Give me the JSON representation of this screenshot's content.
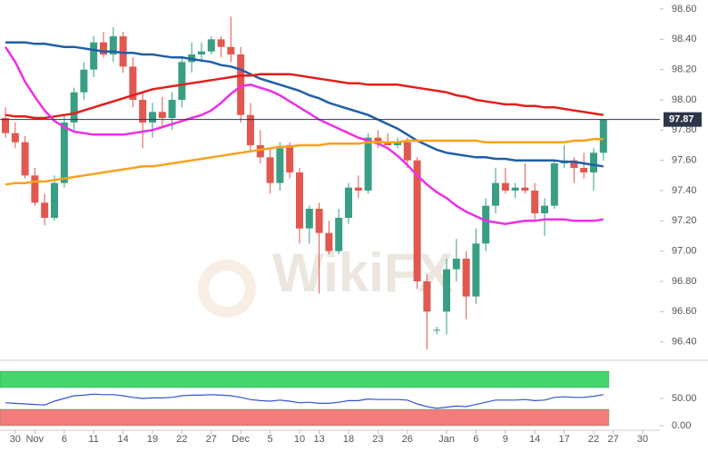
{
  "chart_data": [
    {
      "type": "candlestick",
      "categories": [
        null,
        "30",
        null,
        "Nov",
        null,
        null,
        "6",
        null,
        null,
        "11",
        null,
        null,
        "14",
        null,
        null,
        "19",
        null,
        null,
        "22",
        null,
        null,
        "27",
        null,
        null,
        "Dec",
        null,
        null,
        "5",
        null,
        null,
        "10",
        null,
        "13",
        null,
        null,
        "18",
        null,
        null,
        "23",
        null,
        null,
        "26",
        null,
        null,
        null,
        "Jan",
        null,
        null,
        "6",
        null,
        null,
        "9",
        null,
        null,
        "14",
        null,
        null,
        "17",
        null,
        null,
        "22",
        null,
        "27",
        null,
        null,
        "30"
      ],
      "open": [
        97.88,
        97.78,
        97.72,
        97.5,
        97.32,
        97.22,
        97.45,
        97.85,
        98.05,
        98.2,
        98.38,
        98.3,
        98.42,
        98.22,
        98.0,
        97.85,
        97.92,
        97.88,
        98.0,
        98.25,
        98.3,
        98.32,
        98.4,
        98.35,
        98.3,
        97.9,
        97.7,
        97.62,
        97.45,
        97.7,
        97.52,
        97.15,
        97.28,
        97.12,
        97.0,
        97.22,
        97.42,
        97.4,
        97.75,
        97.72,
        97.7,
        97.72,
        97.6,
        96.8,
        96.48,
        96.6,
        96.88,
        96.95,
        96.7,
        97.05,
        97.3,
        97.45,
        97.4,
        97.42,
        97.4,
        97.25,
        97.3,
        97.58,
        97.6,
        97.55,
        97.52,
        97.65,
        null,
        null,
        null,
        null
      ],
      "high": [
        97.95,
        97.85,
        97.76,
        97.55,
        97.38,
        97.5,
        97.9,
        98.08,
        98.25,
        98.42,
        98.45,
        98.48,
        98.45,
        98.28,
        98.05,
        97.98,
        98.02,
        98.05,
        98.28,
        98.38,
        98.38,
        98.42,
        98.42,
        98.55,
        98.35,
        97.98,
        97.8,
        97.68,
        97.72,
        97.72,
        97.55,
        97.3,
        97.32,
        97.2,
        97.28,
        97.45,
        97.5,
        97.78,
        97.8,
        97.78,
        97.75,
        97.75,
        97.62,
        96.85,
        96.5,
        96.95,
        97.08,
        97.0,
        97.15,
        97.35,
        97.55,
        97.55,
        97.45,
        97.58,
        97.45,
        97.35,
        97.6,
        97.7,
        97.62,
        97.65,
        97.68,
        97.87,
        null,
        null,
        null,
        null
      ],
      "low": [
        97.75,
        97.68,
        97.48,
        97.3,
        97.17,
        97.2,
        97.42,
        97.8,
        98.0,
        98.15,
        98.28,
        98.25,
        98.18,
        97.95,
        97.68,
        97.75,
        97.82,
        97.8,
        97.95,
        98.18,
        98.25,
        98.3,
        98.28,
        98.25,
        97.85,
        97.65,
        97.58,
        97.38,
        97.4,
        97.48,
        97.05,
        97.05,
        96.72,
        96.98,
        96.98,
        97.18,
        97.35,
        97.38,
        97.68,
        97.7,
        97.68,
        97.55,
        96.75,
        96.35,
        96.45,
        96.45,
        96.8,
        96.55,
        96.65,
        97.0,
        97.25,
        97.38,
        97.35,
        97.38,
        97.2,
        97.1,
        97.28,
        97.55,
        97.45,
        97.48,
        97.4,
        97.6,
        null,
        null,
        null,
        null
      ],
      "close": [
        97.78,
        97.72,
        97.5,
        97.32,
        97.22,
        97.45,
        97.85,
        98.05,
        98.2,
        98.38,
        98.3,
        98.42,
        98.22,
        98.0,
        97.85,
        97.92,
        97.88,
        98.0,
        98.25,
        98.3,
        98.32,
        98.4,
        98.35,
        98.3,
        97.9,
        97.7,
        97.62,
        97.45,
        97.68,
        97.52,
        97.15,
        97.28,
        97.12,
        97.0,
        97.22,
        97.42,
        97.4,
        97.75,
        97.72,
        97.7,
        97.72,
        97.6,
        96.8,
        96.6,
        96.48,
        96.88,
        96.95,
        96.7,
        97.05,
        97.3,
        97.45,
        97.4,
        97.42,
        97.4,
        97.25,
        97.3,
        97.58,
        97.6,
        97.55,
        97.52,
        97.65,
        97.87,
        null,
        null,
        null,
        null
      ],
      "up_color": "#3a9e84",
      "down_color": "#e0584f",
      "series": [
        {
          "color": "#1f5fa8",
          "values": [
            98.38,
            98.38,
            98.38,
            98.37,
            98.37,
            98.36,
            98.35,
            98.35,
            98.34,
            98.33,
            98.32,
            98.32,
            98.31,
            98.31,
            98.3,
            98.3,
            98.29,
            98.28,
            98.28,
            98.27,
            98.26,
            98.25,
            98.23,
            98.22,
            98.2,
            98.17,
            98.14,
            98.12,
            98.1,
            98.08,
            98.06,
            98.03,
            98.01,
            97.98,
            97.96,
            97.94,
            97.92,
            97.9,
            97.87,
            97.84,
            97.81,
            97.77,
            97.73,
            97.7,
            97.67,
            97.65,
            97.64,
            97.63,
            97.62,
            97.62,
            97.61,
            97.61,
            97.6,
            97.6,
            97.6,
            97.6,
            97.6,
            97.59,
            97.59,
            97.58,
            97.57,
            97.56,
            null,
            null,
            null,
            null
          ]
        },
        {
          "color": "#e0201b",
          "values": [
            97.9,
            97.89,
            97.89,
            97.88,
            97.88,
            97.89,
            97.9,
            97.91,
            97.93,
            97.95,
            97.97,
            97.99,
            98.01,
            98.03,
            98.05,
            98.07,
            98.08,
            98.09,
            98.1,
            98.11,
            98.12,
            98.13,
            98.14,
            98.15,
            98.16,
            98.16,
            98.17,
            98.17,
            98.17,
            98.17,
            98.16,
            98.15,
            98.14,
            98.13,
            98.12,
            98.11,
            98.11,
            98.1,
            98.1,
            98.1,
            98.1,
            98.09,
            98.08,
            98.07,
            98.06,
            98.05,
            98.03,
            98.02,
            98.0,
            97.99,
            97.98,
            97.97,
            97.97,
            97.96,
            97.96,
            97.95,
            97.95,
            97.94,
            97.93,
            97.92,
            97.91,
            97.9,
            null,
            null,
            null,
            null
          ]
        },
        {
          "color": "#ee2ee8",
          "values": [
            98.35,
            98.25,
            98.12,
            98.02,
            97.93,
            97.86,
            97.82,
            97.79,
            97.78,
            97.77,
            97.77,
            97.77,
            97.77,
            97.78,
            97.79,
            97.8,
            97.82,
            97.84,
            97.86,
            97.88,
            97.9,
            97.93,
            97.98,
            98.04,
            98.09,
            98.1,
            98.08,
            98.06,
            98.03,
            97.99,
            97.95,
            97.91,
            97.87,
            97.84,
            97.81,
            97.78,
            97.75,
            97.73,
            97.71,
            97.68,
            97.63,
            97.57,
            97.5,
            97.44,
            97.39,
            97.35,
            97.3,
            97.26,
            97.23,
            97.2,
            97.19,
            97.18,
            97.19,
            97.2,
            97.2,
            97.21,
            97.21,
            97.21,
            97.2,
            97.2,
            97.2,
            97.21,
            null,
            null,
            null,
            null
          ]
        },
        {
          "color": "#f7a21b",
          "values": [
            97.44,
            97.45,
            97.45,
            97.46,
            97.46,
            97.47,
            97.48,
            97.49,
            97.5,
            97.51,
            97.52,
            97.53,
            97.54,
            97.55,
            97.56,
            97.56,
            97.57,
            97.58,
            97.59,
            97.6,
            97.61,
            97.62,
            97.63,
            97.64,
            97.65,
            97.66,
            97.67,
            97.68,
            97.69,
            97.69,
            97.7,
            97.7,
            97.7,
            97.71,
            97.71,
            97.71,
            97.71,
            97.72,
            97.72,
            97.72,
            97.72,
            97.73,
            97.73,
            97.73,
            97.73,
            97.73,
            97.73,
            97.73,
            97.73,
            97.72,
            97.72,
            97.72,
            97.72,
            97.72,
            97.72,
            97.72,
            97.72,
            97.72,
            97.73,
            97.73,
            97.74,
            97.74,
            null,
            null,
            null,
            null
          ]
        }
      ],
      "ylim": [
        96.29,
        98.66
      ],
      "yticks": [
        {
          "value": 96.4,
          "label": "96.40"
        },
        {
          "value": 96.6,
          "label": "96.60"
        },
        {
          "value": 96.8,
          "label": "96.80"
        },
        {
          "value": 97.0,
          "label": "97.00"
        },
        {
          "value": 97.2,
          "label": "97.20"
        },
        {
          "value": 97.4,
          "label": "97.40"
        },
        {
          "value": 97.6,
          "label": "97.60"
        },
        {
          "value": 97.8,
          "label": "97.80"
        },
        {
          "value": 98.0,
          "label": "98.00"
        },
        {
          "value": 98.2,
          "label": "98.20"
        },
        {
          "value": 98.4,
          "label": "98.40"
        },
        {
          "value": 98.6,
          "label": "98.60"
        }
      ],
      "last_price": 97.87,
      "watermark": "WikiFX"
    },
    {
      "type": "line",
      "color": "#3355cc",
      "values": [
        42,
        41,
        40,
        39,
        38,
        45,
        50,
        55,
        56,
        58,
        57,
        57,
        55,
        52,
        50,
        51,
        51,
        52,
        55,
        56,
        56,
        57,
        56,
        55,
        52,
        48,
        46,
        45,
        47,
        45,
        42,
        43,
        41,
        41,
        43,
        46,
        46,
        49,
        48,
        48,
        48,
        47,
        40,
        35,
        32,
        34,
        36,
        35,
        39,
        43,
        47,
        47,
        47,
        48,
        46,
        47,
        52,
        53,
        52,
        52,
        54,
        57,
        null,
        null,
        null,
        null
      ],
      "bands": [
        {
          "from": 70,
          "to": 100,
          "color": "#44d66c"
        },
        {
          "from": 0,
          "to": 30,
          "color": "#f47c7c"
        }
      ],
      "ylim": [
        -5,
        115
      ],
      "yticks": [
        {
          "value": 50,
          "label": "50.00"
        },
        {
          "value": 0,
          "label": "0.00"
        }
      ]
    }
  ]
}
